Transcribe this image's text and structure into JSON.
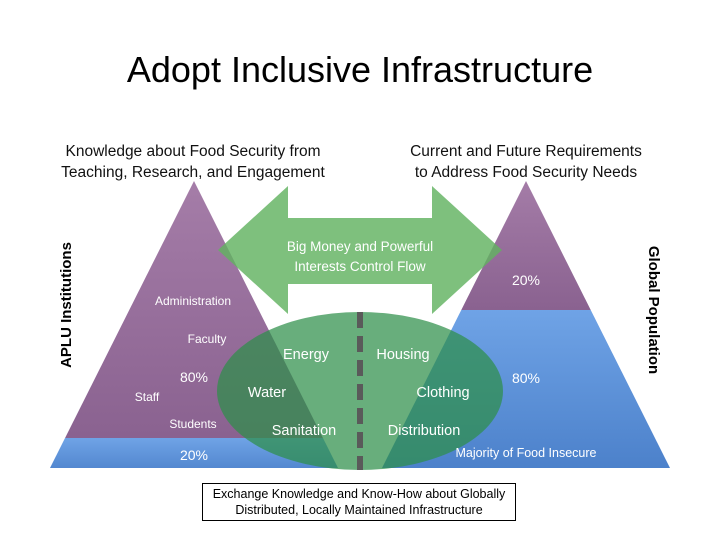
{
  "title": "Adopt Inclusive Infrastructure",
  "left_caption": "Knowledge about Food Security from\nTeaching, Research, and Engagement",
  "right_caption": "Current and Future Requirements\nto Address Food Security Needs",
  "left_vertical_label": "APLU Institutions",
  "right_vertical_label": "Global Population",
  "arrow_label": "Big Money and Powerful\nInterests Control Flow",
  "left_pyramid": {
    "top_share": "80%",
    "bottom_share": "20%",
    "levels": [
      "Administration",
      "Faculty",
      "Staff",
      "Students"
    ]
  },
  "right_pyramid": {
    "top_share": "20%",
    "bottom_share": "80%",
    "bottom_label": "Majority of Food Insecure"
  },
  "ellipse": {
    "left_items": [
      "Energy",
      "Water",
      "Sanitation"
    ],
    "right_items": [
      "Housing",
      "Clothing",
      "Distribution"
    ]
  },
  "footer": "Exchange Knowledge and Know-How about Globally\nDistributed, Locally Maintained Infrastructure",
  "colors": {
    "purple": "#9b6f9e",
    "blue": "#5b8fd6",
    "green": "#62b260",
    "ellipse_green": "#2e8f4a",
    "divider": "#5a5a5a"
  }
}
